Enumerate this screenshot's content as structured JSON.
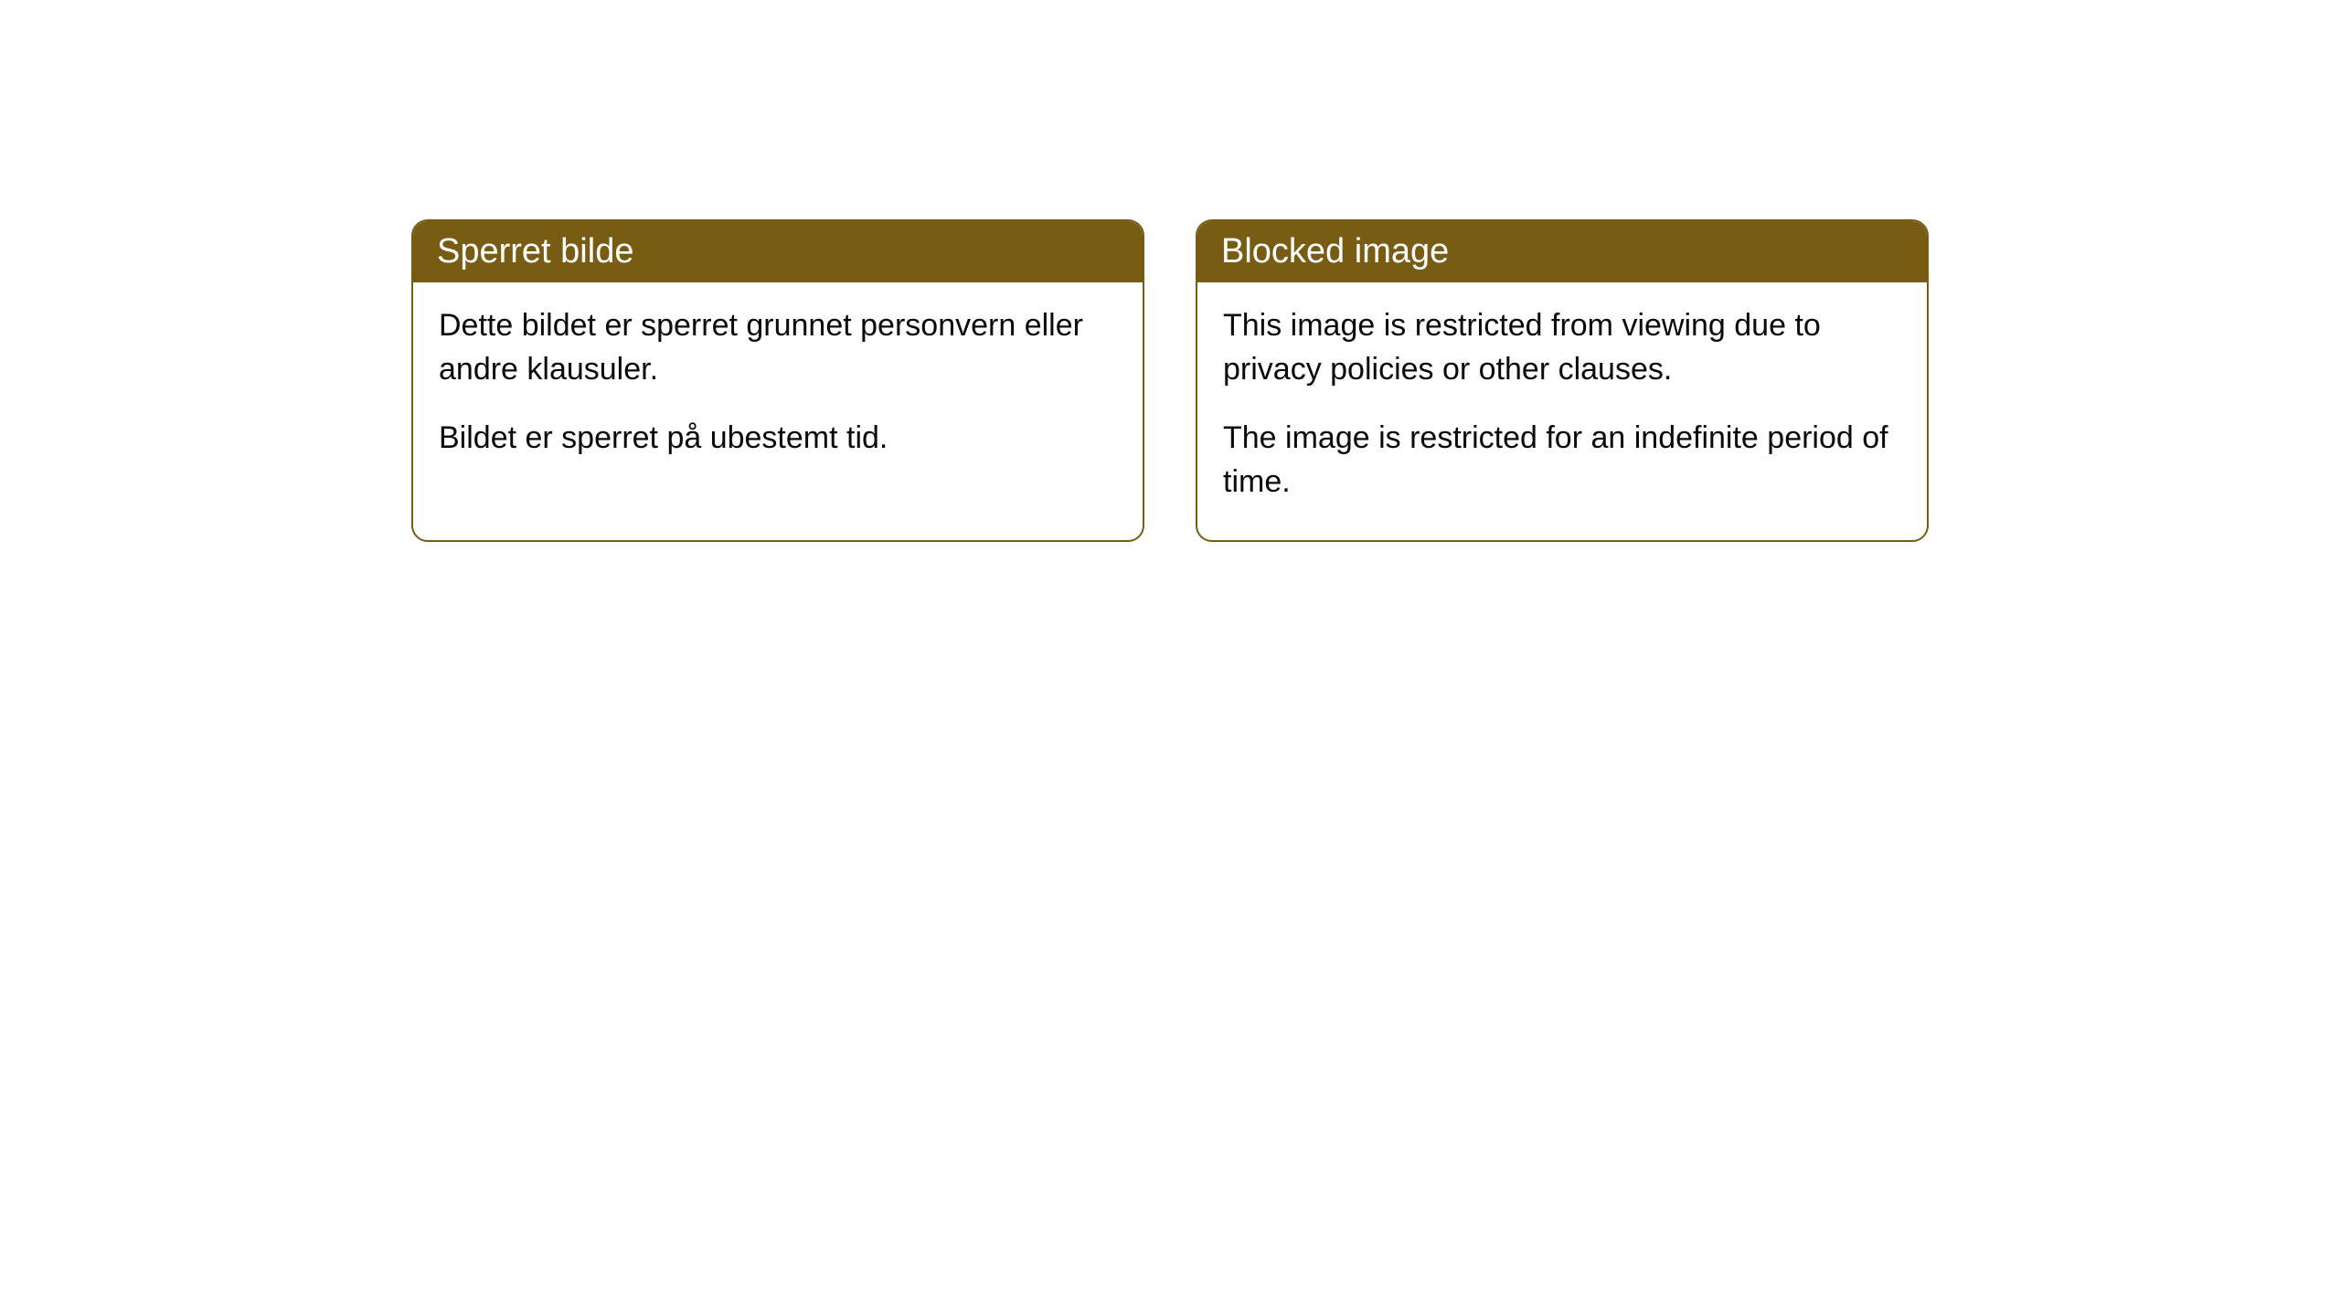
{
  "cards": [
    {
      "title": "Sperret bilde",
      "paragraph1": "Dette bildet er sperret grunnet personvern eller andre klausuler.",
      "paragraph2": "Bildet er sperret på ubestemt tid."
    },
    {
      "title": "Blocked image",
      "paragraph1": "This image is restricted from viewing due to privacy policies or other clauses.",
      "paragraph2": "The image is restricted for an indefinite period of time."
    }
  ],
  "styling": {
    "header_bg_color": "#785c13",
    "header_text_color": "#ffffff",
    "border_color": "#785c13",
    "body_bg_color": "#ffffff",
    "body_text_color": "#0a0a0a",
    "border_radius": 18,
    "header_fontsize": 38,
    "body_fontsize": 34
  }
}
